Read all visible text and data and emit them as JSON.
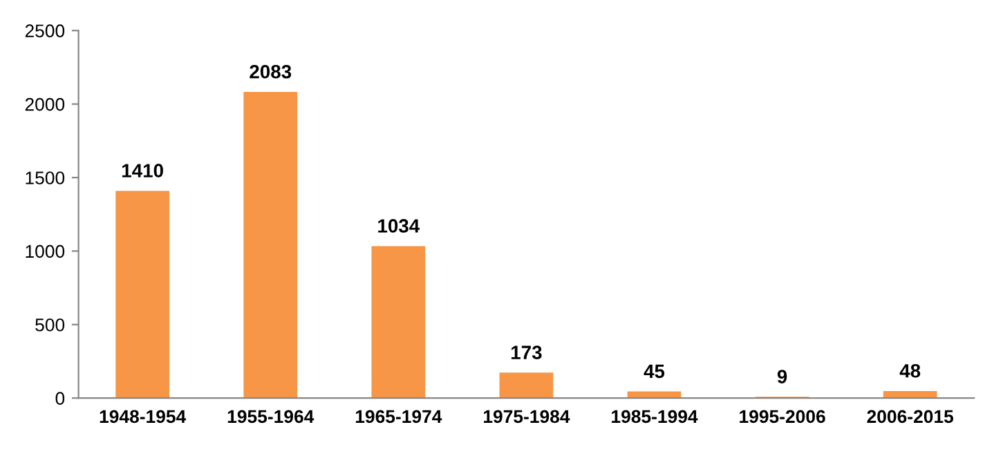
{
  "chart_data": {
    "type": "bar",
    "categories": [
      "1948-1954",
      "1955-1964",
      "1965-1974",
      "1975-1984",
      "1985-1994",
      "1995-2006",
      "2006-2015"
    ],
    "values": [
      1410,
      2083,
      1034,
      173,
      45,
      9,
      48
    ],
    "color": "#f79646",
    "ylim": [
      0,
      2500
    ],
    "yticks": [
      0,
      500,
      1000,
      1500,
      2000,
      2500
    ],
    "grid": false,
    "data_labels": true
  }
}
